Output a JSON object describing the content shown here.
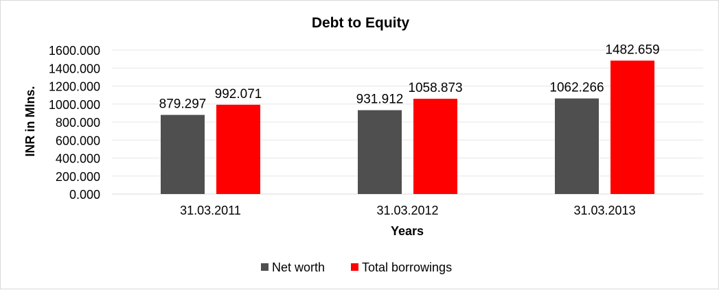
{
  "chart_data": {
    "type": "bar",
    "title": "Debt to Equity",
    "xlabel": "Years",
    "ylabel": "INR in Mlns.",
    "categories": [
      "31.03.2011",
      "31.03.2012",
      "31.03.2013"
    ],
    "series": [
      {
        "name": "Net worth",
        "color": "#4f4f4f",
        "values": [
          879.297,
          931.912,
          1062.266
        ],
        "labels": [
          "879.297",
          "931.912",
          "1062.266"
        ]
      },
      {
        "name": "Total borrowings",
        "color": "#ff0000",
        "values": [
          992.071,
          1058.873,
          1482.659
        ],
        "labels": [
          "992.071",
          "1058.873",
          "1482.659"
        ]
      }
    ],
    "ylim": [
      0,
      1600
    ],
    "yticks": [
      {
        "value": 0,
        "label": "0.000"
      },
      {
        "value": 200,
        "label": "200.000"
      },
      {
        "value": 400,
        "label": "400.000"
      },
      {
        "value": 600,
        "label": "600.000"
      },
      {
        "value": 800,
        "label": "800.000"
      },
      {
        "value": 1000,
        "label": "1000.000"
      },
      {
        "value": 1200,
        "label": "1200.000"
      },
      {
        "value": 1400,
        "label": "1400.000"
      },
      {
        "value": 1600,
        "label": "1600.000"
      }
    ],
    "grid": true,
    "legend_position": "bottom"
  }
}
